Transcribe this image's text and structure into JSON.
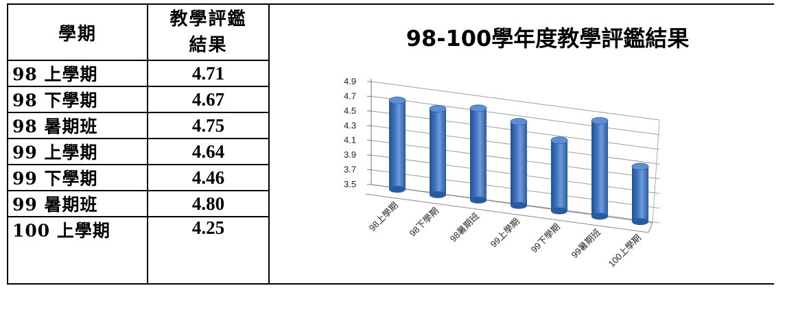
{
  "table": {
    "header_term": "學期",
    "header_score_line1": "教學評鑑",
    "header_score_line2": "結果",
    "rows": [
      {
        "term": "98 上學期",
        "score": "4.71"
      },
      {
        "term": "98 下學期",
        "score": "4.67"
      },
      {
        "term": "98 暑期班",
        "score": "4.75"
      },
      {
        "term": "99 上學期",
        "score": "4.64"
      },
      {
        "term": "99 下學期",
        "score": "4.46"
      },
      {
        "term": "99 暑期班",
        "score": "4.80"
      },
      {
        "term": "100 上學期",
        "score": "4.25"
      }
    ]
  },
  "chart_data": {
    "type": "bar",
    "title": "98-100學年度教學評鑑結果",
    "categories": [
      "98上學期",
      "98下學期",
      "98暑期班",
      "99上學期",
      "99下學期",
      "99暑期班",
      "100上學期"
    ],
    "values": [
      4.71,
      4.67,
      4.75,
      4.64,
      4.46,
      4.8,
      4.25
    ],
    "yticks": [
      "3.5",
      "3.7",
      "3.9",
      "4.1",
      "4.3",
      "4.5",
      "4.7",
      "4.9"
    ],
    "ylim": [
      3.5,
      4.9
    ],
    "bar_color": "#3f74c4",
    "grid": true,
    "legend": "none",
    "style": "3d-cylinder"
  }
}
